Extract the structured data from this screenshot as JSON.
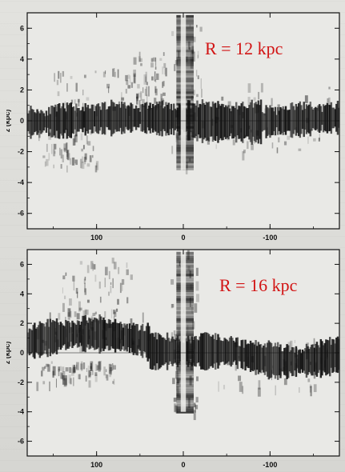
{
  "chart_data": [
    {
      "type": "area",
      "title": "",
      "annotation": "R = 12 kpc",
      "ylabel": "z (kpc)",
      "xlabel": "",
      "xlim": [
        180,
        -180
      ],
      "ylim": [
        -7,
        7
      ],
      "x_ticks": [
        "100",
        "0",
        "-100"
      ],
      "y_ticks": [
        "6",
        "4",
        "2",
        "0",
        "-2",
        "-4",
        "-6"
      ],
      "grid": false,
      "colors": {
        "ink": "#111111",
        "annotation": "#d21414"
      }
    },
    {
      "type": "area",
      "title": "",
      "annotation": "R = 16 kpc",
      "ylabel": "z (kpc)",
      "xlabel": "",
      "xlim": [
        180,
        -180
      ],
      "ylim": [
        -7,
        7
      ],
      "x_ticks": [
        "100",
        "0",
        "-100"
      ],
      "y_ticks": [
        "6",
        "4",
        "2",
        "0",
        "-2",
        "-4",
        "-6"
      ],
      "grid": false,
      "colors": {
        "ink": "#111111",
        "annotation": "#d21414"
      }
    }
  ]
}
